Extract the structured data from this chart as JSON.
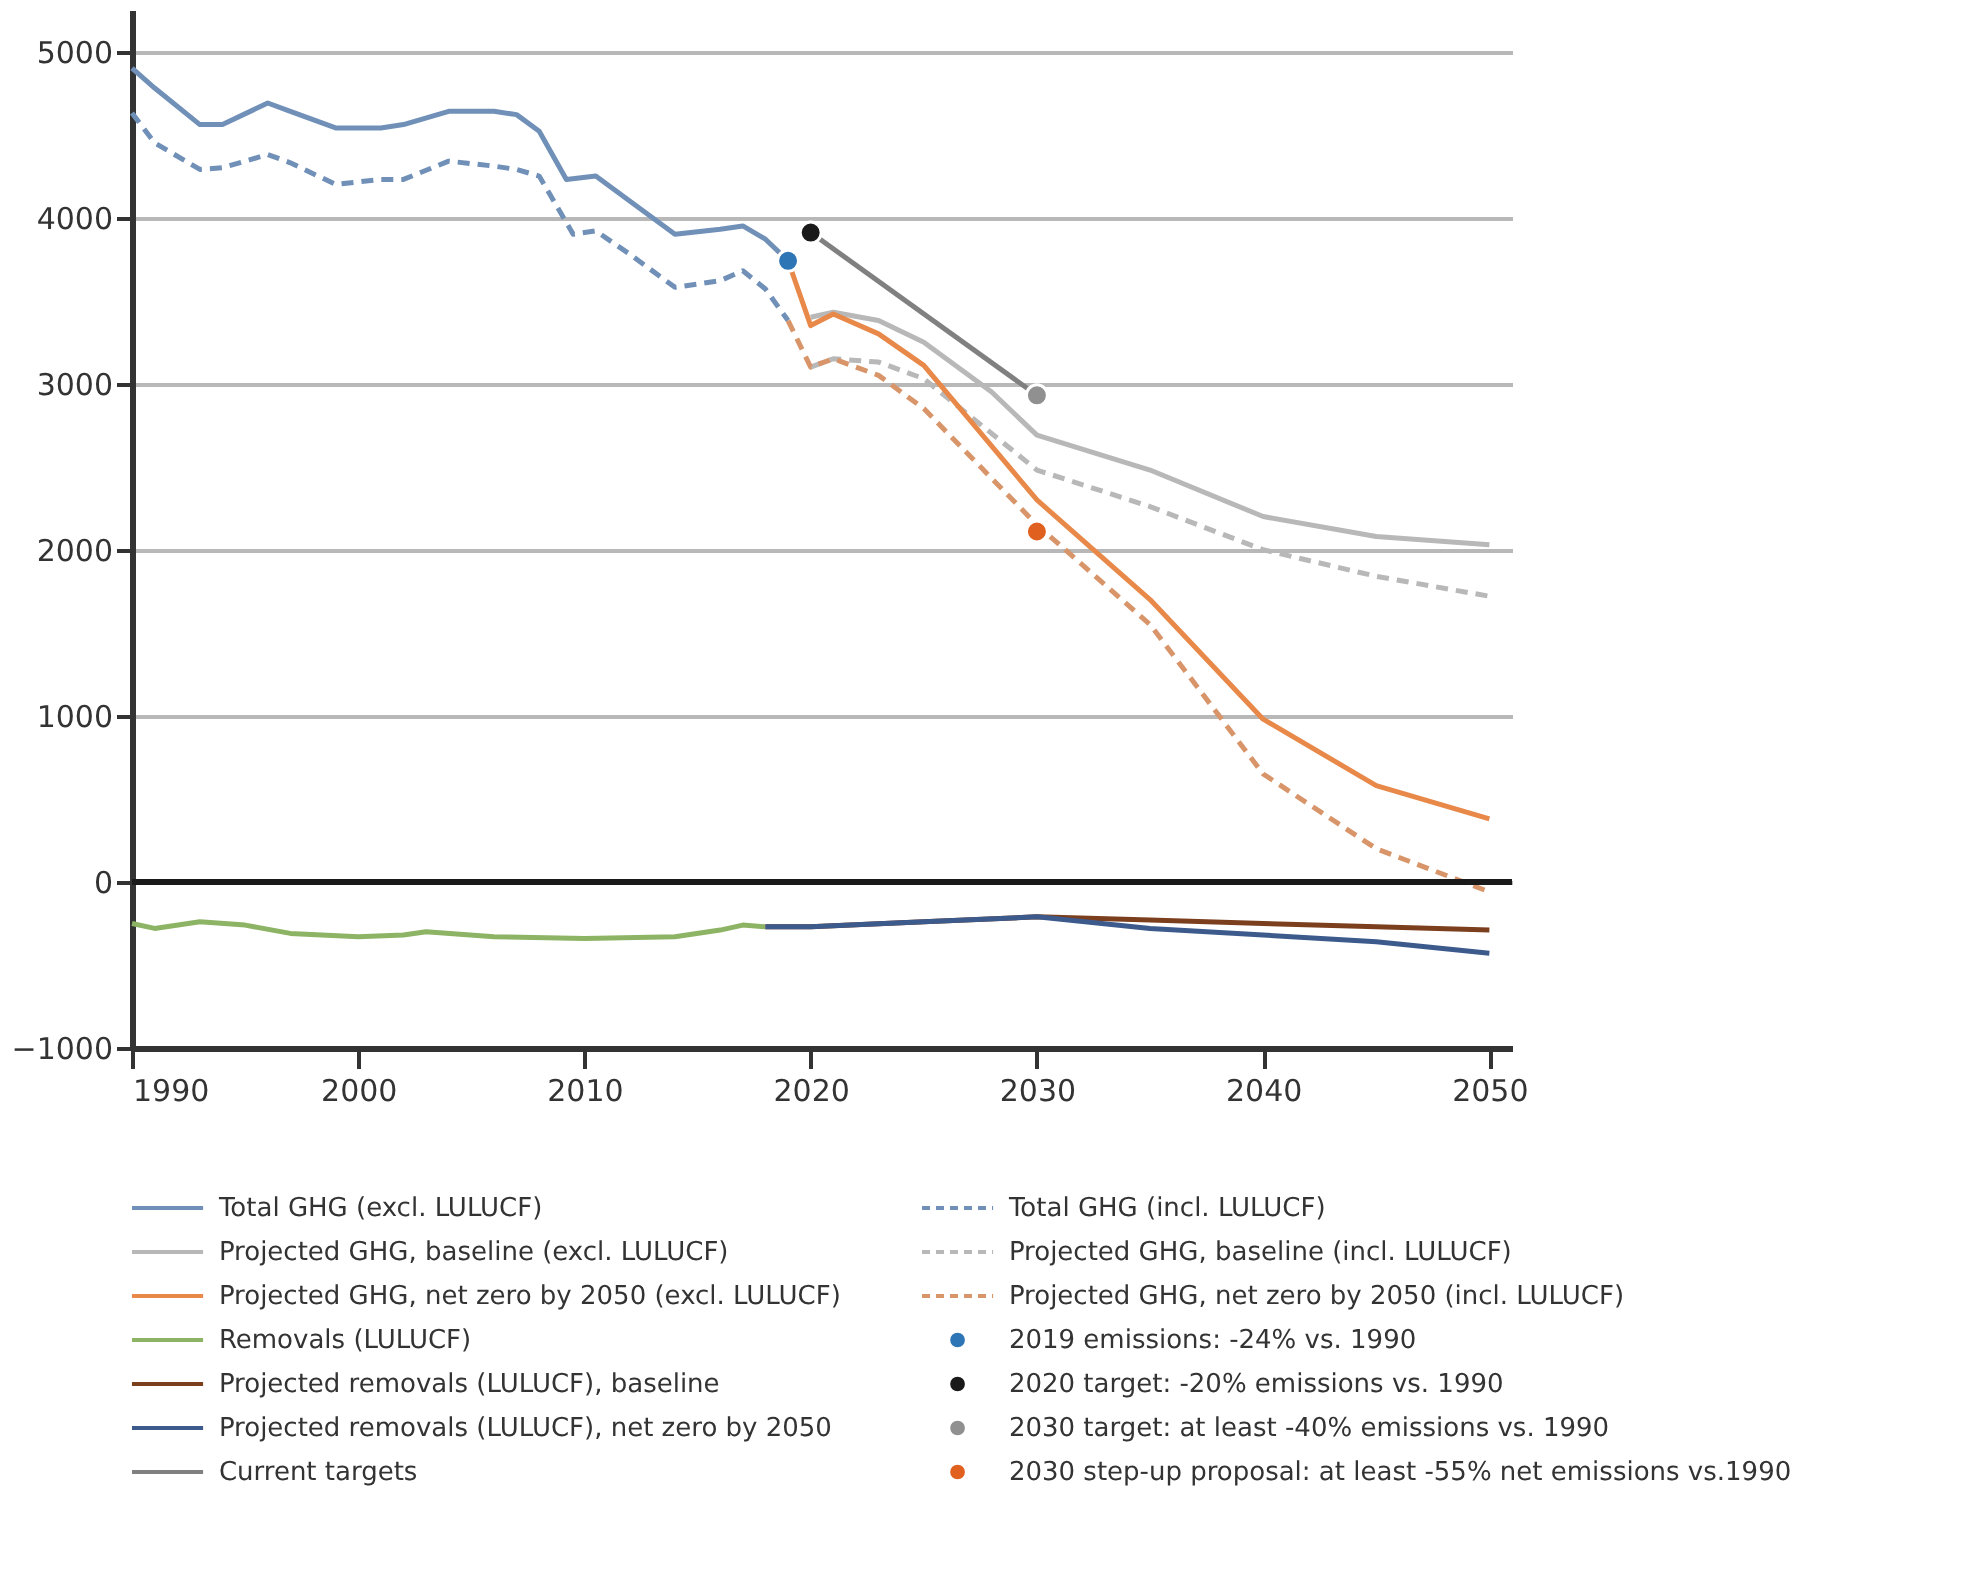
{
  "chart_data": {
    "type": "line",
    "xlim": [
      1990,
      2051
    ],
    "xticks": [
      1990,
      2000,
      2010,
      2020,
      2030,
      2040,
      2050
    ],
    "ylim": [
      -1000,
      5250
    ],
    "yticks": [
      -1000,
      0,
      1000,
      2000,
      3000,
      4000,
      5000
    ],
    "grid": "y",
    "legend": "bottom",
    "ref_lines": [
      {
        "axis": "y",
        "value": 0,
        "color": "#1a1a1a",
        "line_style": "solid"
      }
    ],
    "series": [
      {
        "name": "Total GHG (excl. LULUCF)",
        "color": "#7090b8",
        "line_style": "solid",
        "marker": "none",
        "x": [
          1990,
          1991,
          1993,
          1994,
          1996,
          1997,
          1999,
          2001,
          2002,
          2004,
          2006,
          2007,
          2008,
          2009.2,
          2010.5,
          2012,
          2014,
          2016,
          2017,
          2018,
          2019
        ],
        "values": [
          4900,
          4780,
          4560,
          4560,
          4690,
          4640,
          4540,
          4540,
          4560,
          4640,
          4640,
          4620,
          4520,
          4230,
          4250,
          4100,
          3900,
          3930,
          3950,
          3870,
          3740
        ]
      },
      {
        "name": "Total GHG (incl. LULUCF)",
        "color": "#7090b8",
        "line_style": "dashed",
        "marker": "none",
        "x": [
          1990,
          1991,
          1993,
          1994,
          1996,
          1997,
          1999,
          2001,
          2002,
          2004,
          2006,
          2007,
          2008,
          2009.5,
          2010.5,
          2012,
          2014,
          2016,
          2017,
          2018,
          2019
        ],
        "values": [
          4630,
          4450,
          4290,
          4300,
          4380,
          4330,
          4200,
          4230,
          4230,
          4340,
          4310,
          4290,
          4250,
          3900,
          3920,
          3780,
          3580,
          3620,
          3680,
          3570,
          3380
        ]
      },
      {
        "name": "Projected GHG, baseline (excl. LULUCF)",
        "color": "#b8b8b8",
        "line_style": "solid",
        "marker": "none",
        "x": [
          2020,
          2021,
          2023,
          2025,
          2028,
          2030,
          2035,
          2040,
          2045,
          2050
        ],
        "values": [
          3400,
          3430,
          3380,
          3250,
          2950,
          2690,
          2480,
          2200,
          2080,
          2030
        ]
      },
      {
        "name": "Projected GHG, baseline (incl. LULUCF)",
        "color": "#b8b8b8",
        "line_style": "dashed",
        "marker": "none",
        "x": [
          2020,
          2021,
          2023,
          2025,
          2029,
          2030,
          2035,
          2040,
          2045,
          2050
        ],
        "values": [
          3100,
          3150,
          3130,
          3030,
          2590,
          2480,
          2260,
          2000,
          1840,
          1720
        ]
      },
      {
        "name": "Projected GHG, net zero by 2050 (excl. LULUCF)",
        "color": "#e8894a",
        "line_style": "solid",
        "marker": "none",
        "x": [
          2019,
          2020,
          2021,
          2023,
          2025,
          2030,
          2035,
          2040,
          2045,
          2050
        ],
        "values": [
          3740,
          3350,
          3420,
          3300,
          3110,
          2300,
          1700,
          980,
          580,
          380
        ]
      },
      {
        "name": "Projected GHG, net zero by 2050 (incl. LULUCF)",
        "color": "#d8956a",
        "line_style": "dashed",
        "marker": "none",
        "x": [
          2019,
          2020,
          2021,
          2023,
          2025,
          2030,
          2035,
          2040,
          2045,
          2050
        ],
        "values": [
          3380,
          3100,
          3150,
          3050,
          2850,
          2150,
          1550,
          650,
          200,
          -60
        ]
      },
      {
        "name": "Removals (LULUCF)",
        "color": "#8cb464",
        "line_style": "solid",
        "marker": "none",
        "x": [
          1990,
          1991,
          1993,
          1995,
          1997,
          2000,
          2002,
          2003,
          2006,
          2010,
          2014,
          2016,
          2017,
          2018
        ],
        "values": [
          -250,
          -280,
          -240,
          -260,
          -310,
          -330,
          -320,
          -300,
          -330,
          -340,
          -330,
          -290,
          -260,
          -270
        ]
      },
      {
        "name": "2019 emissions: -24% vs. 1990",
        "type": "scatter",
        "color": "#2e75b6",
        "marker": "circle",
        "x": [
          2019
        ],
        "values": [
          3740
        ]
      },
      {
        "name": "Projected removals (LULUCF), baseline",
        "color": "#7b3f1e",
        "line_style": "solid",
        "marker": "none",
        "x": [
          2018,
          2020,
          2025,
          2030,
          2035,
          2040,
          2045,
          2050
        ],
        "values": [
          -270,
          -270,
          -240,
          -210,
          -230,
          -250,
          -270,
          -290
        ]
      },
      {
        "name": "2020 target: -20% emissions vs. 1990",
        "type": "scatter",
        "color": "#1a1a1a",
        "marker": "circle",
        "x": [
          2020
        ],
        "values": [
          3910
        ]
      },
      {
        "name": "Projected removals (LULUCF), net zero by 2050",
        "color": "#3c5a8c",
        "line_style": "solid",
        "marker": "none",
        "x": [
          2018,
          2020,
          2025,
          2030,
          2035,
          2040,
          2045,
          2050
        ],
        "values": [
          -270,
          -270,
          -240,
          -210,
          -280,
          -320,
          -360,
          -430
        ]
      },
      {
        "name": "2030 target: at least -40% emissions vs. 1990",
        "type": "scatter",
        "color": "#909090",
        "marker": "circle",
        "x": [
          2030
        ],
        "values": [
          2930
        ]
      },
      {
        "name": "Current targets",
        "color": "#808080",
        "line_style": "solid",
        "marker": "none",
        "x": [
          2020,
          2030
        ],
        "values": [
          3910,
          2930
        ]
      },
      {
        "name": "2030 step-up proposal: at least -55% net emissions vs.1990",
        "type": "scatter",
        "color": "#e06020",
        "marker": "circle",
        "x": [
          2030
        ],
        "values": [
          2110
        ]
      }
    ]
  }
}
